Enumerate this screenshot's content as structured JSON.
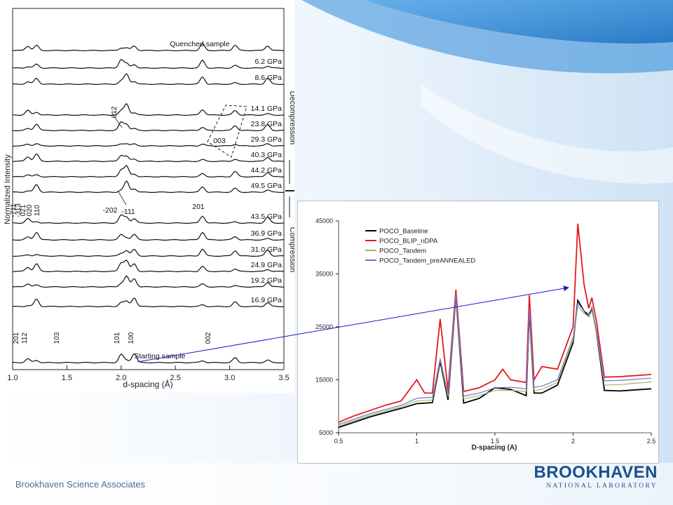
{
  "slide": {
    "footer": "Brookhaven Science Associates",
    "logo_main": "BROOKHAVEN",
    "logo_sub": "NATIONAL LABORATORY",
    "colors": {
      "accent": "#1c4f8c",
      "arrow": "#1a1acc"
    }
  },
  "chart_data": [
    {
      "type": "line",
      "title": "",
      "xlabel": "d-spacing (Å)",
      "ylabel": "Normalized Intensity",
      "xlim": [
        1.0,
        3.5
      ],
      "xticks": [
        "1.0",
        "1.5",
        "2.0",
        "2.5",
        "3.0",
        "3.5"
      ],
      "pressure_labels": [
        "Quenched sample",
        "6.2 GPa",
        "8.6 GPa",
        "14.1 GPa",
        "23.8 GPa",
        "29.3 GPa",
        "40.3 GPa",
        "44.2 GPa",
        "49.5 GPa",
        "43.5 GPa",
        "36.9 GPa",
        "31.0 GPa",
        "24.9 GPa",
        "19.2 GPa",
        "16.9 GPa",
        "Starting sample"
      ],
      "peak_labels_rotated": [
        "012",
        "-111",
        "110",
        "020",
        "021",
        "-313",
        "-711",
        "201",
        "112",
        "103",
        "101",
        "100",
        "002"
      ],
      "peak_labels": [
        "003",
        "201",
        "-202",
        "-111"
      ],
      "side_labels": {
        "top": "Decompression",
        "bottom": "Compression"
      },
      "grid": false
    },
    {
      "type": "line",
      "title": "",
      "xlabel": "D-spacing (A)",
      "ylabel": "",
      "xlim": [
        0.5,
        2.5
      ],
      "ylim": [
        5000,
        45000
      ],
      "xticks": [
        "0.5",
        "1",
        "1.5",
        "2",
        "2.5"
      ],
      "yticks": [
        "5000",
        "15000",
        "25000",
        "35000",
        "45000"
      ],
      "legend_placement": "top-left",
      "grid": false,
      "series": [
        {
          "name": "POCO_Baseline",
          "color": "#000000",
          "points": [
            [
              0.5,
              6000
            ],
            [
              0.6,
              7000
            ],
            [
              0.7,
              8000
            ],
            [
              0.8,
              8800
            ],
            [
              0.9,
              9600
            ],
            [
              1.0,
              10500
            ],
            [
              1.1,
              10700
            ],
            [
              1.15,
              18500
            ],
            [
              1.2,
              11200
            ],
            [
              1.25,
              31000
            ],
            [
              1.3,
              10600
            ],
            [
              1.4,
              11500
            ],
            [
              1.5,
              13500
            ],
            [
              1.6,
              13200
            ],
            [
              1.7,
              12000
            ],
            [
              1.72,
              28000
            ],
            [
              1.75,
              12500
            ],
            [
              1.8,
              12500
            ],
            [
              1.9,
              14000
            ],
            [
              2.0,
              22000
            ],
            [
              2.03,
              30000
            ],
            [
              2.07,
              28000
            ],
            [
              2.1,
              27000
            ],
            [
              2.12,
              28500
            ],
            [
              2.15,
              24000
            ],
            [
              2.2,
              13000
            ],
            [
              2.3,
              12900
            ],
            [
              2.5,
              13300
            ]
          ]
        },
        {
          "name": "POCO_BLIP_nDPA",
          "color": "#e31a1c",
          "points": [
            [
              0.5,
              7000
            ],
            [
              0.6,
              8200
            ],
            [
              0.7,
              9200
            ],
            [
              0.8,
              10200
            ],
            [
              0.9,
              11000
            ],
            [
              1.0,
              15000
            ],
            [
              1.05,
              12500
            ],
            [
              1.1,
              12500
            ],
            [
              1.15,
              26500
            ],
            [
              1.2,
              13000
            ],
            [
              1.25,
              32000
            ],
            [
              1.3,
              12800
            ],
            [
              1.4,
              13500
            ],
            [
              1.5,
              15000
            ],
            [
              1.55,
              17000
            ],
            [
              1.6,
              15000
            ],
            [
              1.7,
              14500
            ],
            [
              1.72,
              31000
            ],
            [
              1.75,
              15000
            ],
            [
              1.8,
              17500
            ],
            [
              1.9,
              17000
            ],
            [
              2.0,
              25000
            ],
            [
              2.03,
              44500
            ],
            [
              2.07,
              33000
            ],
            [
              2.1,
              28500
            ],
            [
              2.12,
              30500
            ],
            [
              2.15,
              26000
            ],
            [
              2.2,
              15500
            ],
            [
              2.3,
              15600
            ],
            [
              2.5,
              16000
            ]
          ]
        },
        {
          "name": "POCO_Tandem",
          "color": "#9bbb59",
          "points": [
            [
              0.5,
              6300
            ],
            [
              0.6,
              7300
            ],
            [
              0.7,
              8300
            ],
            [
              0.8,
              9100
            ],
            [
              0.9,
              9900
            ],
            [
              1.0,
              11000
            ],
            [
              1.1,
              11200
            ],
            [
              1.15,
              18800
            ],
            [
              1.2,
              11800
            ],
            [
              1.25,
              31000
            ],
            [
              1.3,
              11400
            ],
            [
              1.4,
              12000
            ],
            [
              1.5,
              13000
            ],
            [
              1.6,
              13000
            ],
            [
              1.7,
              12800
            ],
            [
              1.72,
              28000
            ],
            [
              1.75,
              13000
            ],
            [
              1.8,
              13200
            ],
            [
              1.9,
              14500
            ],
            [
              2.0,
              22500
            ],
            [
              2.03,
              29000
            ],
            [
              2.07,
              27500
            ],
            [
              2.1,
              27000
            ],
            [
              2.12,
              28000
            ],
            [
              2.15,
              24000
            ],
            [
              2.2,
              14000
            ],
            [
              2.3,
              14100
            ],
            [
              2.5,
              14600
            ]
          ]
        },
        {
          "name": "POCO_Tandem_preANNEALED",
          "color": "#7c6fd1",
          "points": [
            [
              0.5,
              6600
            ],
            [
              0.6,
              7600
            ],
            [
              0.7,
              8600
            ],
            [
              0.8,
              9400
            ],
            [
              0.9,
              10200
            ],
            [
              1.0,
              11500
            ],
            [
              1.1,
              11700
            ],
            [
              1.15,
              19000
            ],
            [
              1.2,
              12300
            ],
            [
              1.25,
              31200
            ],
            [
              1.3,
              11900
            ],
            [
              1.4,
              12500
            ],
            [
              1.5,
              13500
            ],
            [
              1.6,
              13600
            ],
            [
              1.7,
              13300
            ],
            [
              1.72,
              28500
            ],
            [
              1.75,
              13600
            ],
            [
              1.8,
              13800
            ],
            [
              1.9,
              15000
            ],
            [
              2.0,
              23000
            ],
            [
              2.03,
              29500
            ],
            [
              2.07,
              28000
            ],
            [
              2.1,
              27500
            ],
            [
              2.12,
              28500
            ],
            [
              2.15,
              24500
            ],
            [
              2.2,
              14800
            ],
            [
              2.3,
              14900
            ],
            [
              2.5,
              15300
            ]
          ]
        }
      ]
    }
  ]
}
